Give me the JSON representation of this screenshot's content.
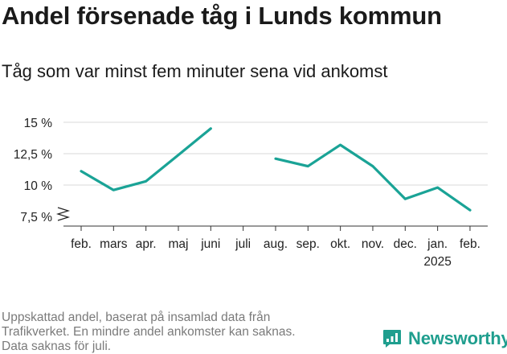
{
  "title": "Andel försenade tåg i Lunds kommun",
  "subtitle": "Tåg som var minst fem minuter sena vid ankomst",
  "footnote": [
    "Uppskattad andel, baserat på insamlad data från",
    "Trafikverket. En mindre andel ankomster kan saknas.",
    "Data saknas för juli."
  ],
  "brand": {
    "name": "Newsworthy",
    "icon": "newsworthy-logo-icon"
  },
  "colors": {
    "line": "#1aa396",
    "grid": "#d9d9d9",
    "axis": "#333333",
    "brand": "#1f9e8e"
  },
  "chart_data": {
    "type": "line",
    "title": "Andel försenade tåg i Lunds kommun",
    "subtitle": "Tåg som var minst fem minuter sena vid ankomst",
    "categories": [
      "feb.",
      "mars",
      "apr.",
      "maj",
      "juni",
      "juli",
      "aug.",
      "sep.",
      "okt.",
      "nov.",
      "dec.",
      "jan.",
      "feb."
    ],
    "category_sublabels": [
      "",
      "",
      "",
      "",
      "",
      "",
      "",
      "",
      "",
      "",
      "",
      "2025",
      ""
    ],
    "values": [
      11.1,
      9.6,
      10.3,
      12.4,
      14.5,
      null,
      12.1,
      11.5,
      13.2,
      11.5,
      8.9,
      9.8,
      8.0
    ],
    "yticks": [
      7.5,
      10,
      12.5,
      15
    ],
    "ytick_labels": [
      "7,5 %",
      "10 %",
      "12,5 %",
      "15 %"
    ],
    "ylim": [
      7.5,
      15
    ],
    "axis_break": true,
    "grid": true,
    "legend": "none"
  }
}
